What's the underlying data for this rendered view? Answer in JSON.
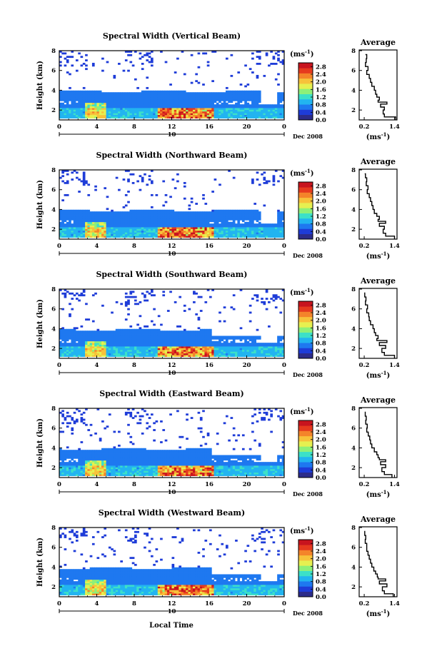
{
  "figure": {
    "xlabel": "Local Time",
    "date_label": "Dec 2008",
    "day_label": "10",
    "colorbar_unit_base": "(ms",
    "colorbar_unit_exp": "-1",
    "colorbar_unit_close": ")",
    "avg_title": "Average",
    "avg_unit_base": "(ms",
    "avg_unit_exp": "-1",
    "avg_unit_close": ")",
    "ylabel": "Height (km)"
  },
  "colors": {
    "scale": [
      "#2c2c8a",
      "#1e3cd8",
      "#1e78f0",
      "#22b4f0",
      "#3ce0c8",
      "#8ef078",
      "#e6f050",
      "#f7c23a",
      "#f4842a",
      "#e63a1e",
      "#c8141e"
    ]
  },
  "chart_data": [
    {
      "type": "heatmap",
      "title": "Spectral Width (Vertical Beam)",
      "ylabel": "Height (km)",
      "xticks": [
        "0",
        "4",
        "8",
        "12",
        "16",
        "20",
        "0"
      ],
      "yticks": [
        "2",
        "4",
        "6",
        "8"
      ],
      "xlim": [
        0,
        24
      ],
      "ylim": [
        1,
        8
      ],
      "colorbar_ticks": [
        "0.0",
        "0.4",
        "0.8",
        "1.2",
        "1.6",
        "2.0",
        "2.4",
        "2.8"
      ],
      "colorbar_range": [
        0,
        3.0
      ],
      "average_profile": {
        "xticks": [
          "0.2",
          "1.4"
        ],
        "yticks": [
          "2",
          "4",
          "6",
          "8"
        ],
        "xlim": [
          0.0,
          1.5
        ],
        "height_km": [
          1.0,
          1.3,
          1.6,
          2.0,
          2.3,
          2.6,
          2.8,
          3.0,
          3.3,
          3.6,
          4.0,
          4.4,
          4.8,
          5.2,
          5.6,
          6.0,
          6.4,
          6.8,
          7.2,
          7.6
        ],
        "value": [
          1.45,
          1.0,
          0.95,
          1.0,
          0.85,
          1.1,
          0.75,
          0.8,
          0.7,
          0.65,
          0.6,
          0.5,
          0.45,
          0.4,
          0.3,
          0.35,
          0.25,
          0.28,
          0.3,
          0.25
        ]
      }
    },
    {
      "type": "heatmap",
      "title": "Spectral Width (Northward Beam)",
      "ylabel": "Height (km)",
      "xticks": [
        "0",
        "4",
        "8",
        "12",
        "16",
        "20",
        "0"
      ],
      "yticks": [
        "2",
        "4",
        "6",
        "8"
      ],
      "xlim": [
        0,
        24
      ],
      "ylim": [
        1,
        8
      ],
      "colorbar_ticks": [
        "0.0",
        "0.4",
        "0.8",
        "1.2",
        "1.6",
        "2.0",
        "2.4",
        "2.8"
      ],
      "colorbar_range": [
        0,
        3.0
      ],
      "average_profile": {
        "xticks": [
          "0.2",
          "1.4"
        ],
        "yticks": [
          "2",
          "4",
          "6",
          "8"
        ],
        "xlim": [
          0.0,
          1.5
        ],
        "height_km": [
          1.0,
          1.3,
          1.6,
          2.0,
          2.3,
          2.6,
          2.8,
          3.0,
          3.3,
          3.6,
          4.0,
          4.4,
          4.8,
          5.2,
          5.6,
          6.0,
          6.4,
          6.8,
          7.2,
          7.6
        ],
        "value": [
          1.4,
          1.05,
          0.95,
          1.0,
          0.8,
          1.05,
          0.75,
          0.8,
          0.7,
          0.6,
          0.55,
          0.5,
          0.45,
          0.4,
          0.32,
          0.35,
          0.28,
          0.3,
          0.25,
          0.22
        ]
      }
    },
    {
      "type": "heatmap",
      "title": "Spectral Width (Southward Beam)",
      "ylabel": "Height (km)",
      "xticks": [
        "0",
        "4",
        "8",
        "12",
        "16",
        "20",
        "0"
      ],
      "yticks": [
        "2",
        "4",
        "6",
        "8"
      ],
      "xlim": [
        0,
        24
      ],
      "ylim": [
        1,
        8
      ],
      "colorbar_ticks": [
        "0.0",
        "0.4",
        "0.8",
        "1.2",
        "1.6",
        "2.0",
        "2.4",
        "2.8"
      ],
      "colorbar_range": [
        0,
        3.0
      ],
      "average_profile": {
        "xticks": [
          "0.2",
          "1.4"
        ],
        "yticks": [
          "2",
          "4",
          "6",
          "8"
        ],
        "xlim": [
          0.0,
          1.5
        ],
        "height_km": [
          1.0,
          1.3,
          1.6,
          2.0,
          2.3,
          2.6,
          2.8,
          3.0,
          3.3,
          3.6,
          4.0,
          4.4,
          4.8,
          5.2,
          5.6,
          6.0,
          6.4,
          6.8,
          7.2,
          7.6
        ],
        "value": [
          1.4,
          1.0,
          0.9,
          1.05,
          0.8,
          1.1,
          0.7,
          0.75,
          0.65,
          0.6,
          0.55,
          0.45,
          0.4,
          0.38,
          0.3,
          0.33,
          0.25,
          0.27,
          0.22,
          0.2
        ]
      }
    },
    {
      "type": "heatmap",
      "title": "Spectral Width (Eastward Beam)",
      "ylabel": "Height (km)",
      "xticks": [
        "0",
        "4",
        "8",
        "12",
        "16",
        "20",
        "0"
      ],
      "yticks": [
        "2",
        "4",
        "6",
        "8"
      ],
      "xlim": [
        0,
        24
      ],
      "ylim": [
        1,
        8
      ],
      "colorbar_ticks": [
        "0.0",
        "0.4",
        "0.8",
        "1.2",
        "1.6",
        "2.0",
        "2.4",
        "2.8"
      ],
      "colorbar_range": [
        0,
        3.0
      ],
      "average_profile": {
        "xticks": [
          "0.2",
          "1.4"
        ],
        "yticks": [
          "2",
          "4",
          "6",
          "8"
        ],
        "xlim": [
          0.0,
          1.5
        ],
        "height_km": [
          1.0,
          1.3,
          1.6,
          2.0,
          2.3,
          2.6,
          2.8,
          3.0,
          3.3,
          3.6,
          4.0,
          4.4,
          4.8,
          5.2,
          5.6,
          6.0,
          6.4,
          6.8,
          7.2,
          7.6
        ],
        "value": [
          1.3,
          1.0,
          0.9,
          1.05,
          0.85,
          1.05,
          0.8,
          0.75,
          0.7,
          0.6,
          0.5,
          0.45,
          0.42,
          0.36,
          0.3,
          0.32,
          0.26,
          0.28,
          0.24,
          0.22
        ]
      }
    },
    {
      "type": "heatmap",
      "title": "Spectral Width (Westward Beam)",
      "ylabel": "Height (km)",
      "xticks": [
        "0",
        "4",
        "8",
        "12",
        "16",
        "20",
        "0"
      ],
      "yticks": [
        "2",
        "4",
        "6",
        "8"
      ],
      "xlim": [
        0,
        24
      ],
      "ylim": [
        1,
        8
      ],
      "colorbar_ticks": [
        "0.0",
        "0.4",
        "0.8",
        "1.2",
        "1.6",
        "2.0",
        "2.4",
        "2.8"
      ],
      "colorbar_range": [
        0,
        3.0
      ],
      "average_profile": {
        "xticks": [
          "0.2",
          "1.4"
        ],
        "yticks": [
          "2",
          "4",
          "6",
          "8"
        ],
        "xlim": [
          0.0,
          1.5
        ],
        "height_km": [
          1.0,
          1.3,
          1.6,
          2.0,
          2.3,
          2.6,
          2.8,
          3.0,
          3.3,
          3.6,
          4.0,
          4.4,
          4.8,
          5.2,
          5.6,
          6.0,
          6.4,
          6.8,
          7.2,
          7.6
        ],
        "value": [
          1.35,
          1.0,
          0.92,
          1.1,
          0.8,
          1.05,
          0.75,
          0.72,
          0.65,
          0.58,
          0.5,
          0.45,
          0.4,
          0.35,
          0.3,
          0.3,
          0.24,
          0.26,
          0.22,
          0.2
        ]
      }
    }
  ]
}
